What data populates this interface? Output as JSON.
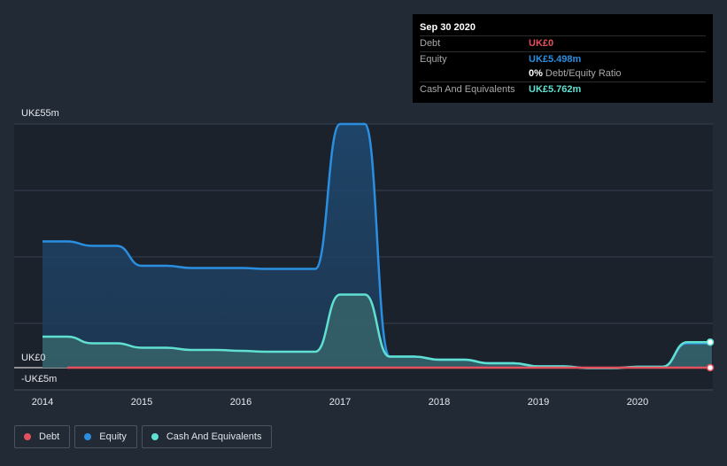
{
  "tooltip": {
    "date": "Sep 30 2020",
    "debt_label": "Debt",
    "debt_value": "UK£0",
    "equity_label": "Equity",
    "equity_value": "UK£5.498m",
    "ratio_value": "0%",
    "ratio_label": "Debt/Equity Ratio",
    "cash_label": "Cash And Equivalents",
    "cash_value": "UK£5.762m"
  },
  "legend": {
    "debt": "Debt",
    "equity": "Equity",
    "cash": "Cash And Equivalents"
  },
  "colors": {
    "debt": "#e4515d",
    "equity": "#2a8fe0",
    "cash": "#5fe0d1",
    "background": "#222a36"
  },
  "chart_data": {
    "type": "area",
    "y_tick_labels": [
      "UK£55m",
      "UK£0",
      "-UK£5m"
    ],
    "y_ticks": [
      55,
      0,
      -5
    ],
    "ylim": [
      -5,
      55
    ],
    "x_ticks": [
      2014,
      2015,
      2016,
      2017,
      2018,
      2019,
      2020
    ],
    "x_tick_labels": [
      "2014",
      "2015",
      "2016",
      "2017",
      "2018",
      "2019",
      "2020"
    ],
    "xlim": [
      2013.75,
      2020.75
    ],
    "grid": true,
    "legend_position": "bottom-left",
    "series": [
      {
        "name": "Equity",
        "x": [
          2014.0,
          2014.25,
          2014.5,
          2014.75,
          2015.0,
          2015.25,
          2015.5,
          2015.75,
          2016.0,
          2016.25,
          2016.5,
          2016.75,
          2017.0,
          2017.25,
          2017.5,
          2017.75,
          2018.0,
          2018.25,
          2018.5,
          2018.75,
          2019.0,
          2019.25,
          2019.5,
          2019.75,
          2020.0,
          2020.25,
          2020.5,
          2020.75
        ],
        "values": [
          28.5,
          28.5,
          27.5,
          27.5,
          23.0,
          23.0,
          22.5,
          22.5,
          22.5,
          22.3,
          22.3,
          22.3,
          55.0,
          55.0,
          2.5,
          2.5,
          1.8,
          1.8,
          1.0,
          1.0,
          0.3,
          0.3,
          -0.1,
          -0.1,
          0.2,
          0.2,
          5.5,
          5.5
        ]
      },
      {
        "name": "Cash And Equivalents",
        "x": [
          2014.0,
          2014.25,
          2014.5,
          2014.75,
          2015.0,
          2015.25,
          2015.5,
          2015.75,
          2016.0,
          2016.25,
          2016.5,
          2016.75,
          2017.0,
          2017.25,
          2017.5,
          2017.75,
          2018.0,
          2018.25,
          2018.5,
          2018.75,
          2019.0,
          2019.25,
          2019.5,
          2019.75,
          2020.0,
          2020.25,
          2020.5,
          2020.75
        ],
        "values": [
          7.0,
          7.0,
          5.5,
          5.5,
          4.5,
          4.5,
          4.0,
          4.0,
          3.8,
          3.6,
          3.6,
          3.6,
          16.5,
          16.5,
          2.5,
          2.5,
          1.8,
          1.8,
          1.0,
          1.0,
          0.3,
          0.3,
          -0.1,
          -0.1,
          0.2,
          0.2,
          5.762,
          5.762
        ]
      },
      {
        "name": "Debt",
        "x": [
          2014.25,
          2020.75
        ],
        "values": [
          0,
          0
        ]
      }
    ]
  }
}
